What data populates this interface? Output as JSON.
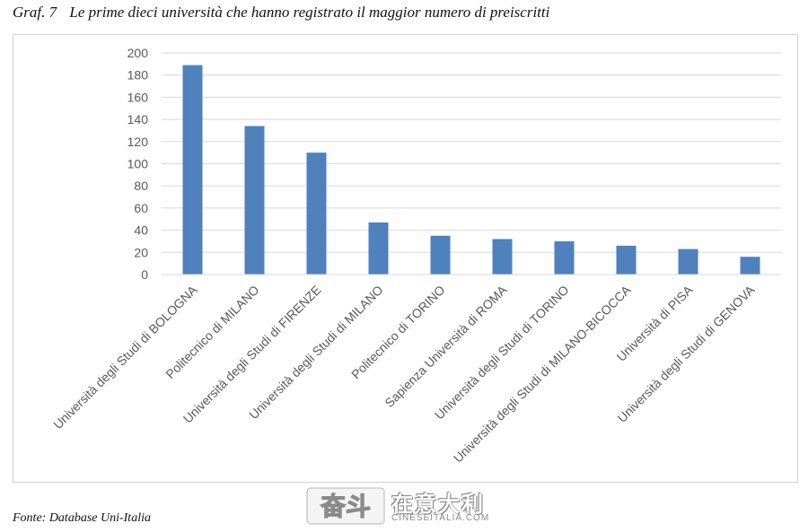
{
  "caption": {
    "label": "Graf. 7",
    "text": "Le prime dieci università che hanno registrato il maggior numero di preiscritti"
  },
  "source": "Fonte: Database Uni-Italia",
  "watermark": {
    "logo_text": "奋斗",
    "brand_text": "在意大利",
    "url": "CINESEITALIA.COM"
  },
  "colors": {
    "bar": "#4f81bd",
    "grid": "#d9d9d9",
    "text": "#595959"
  },
  "chart_data": {
    "type": "bar",
    "title": "",
    "xlabel": "",
    "ylabel": "",
    "ylim": [
      0,
      200
    ],
    "yticks": [
      0,
      20,
      40,
      60,
      80,
      100,
      120,
      140,
      160,
      180,
      200
    ],
    "grid": true,
    "legend": "none",
    "categories": [
      "Università degli Studi di BOLOGNA",
      "Politecnico di MILANO",
      "Università degli Studi di FIRENZE",
      "Università degli Studi di MILANO",
      "Politecnico di TORINO",
      "Sapienza Università di ROMA",
      "Università degli Studi di TORINO",
      "Università degli Studi di MILANO-BICOCCA",
      "Università di PISA",
      "Università degli Studi di GENOVA"
    ],
    "values": [
      189,
      134,
      110,
      47,
      35,
      32,
      30,
      26,
      23,
      16
    ]
  }
}
